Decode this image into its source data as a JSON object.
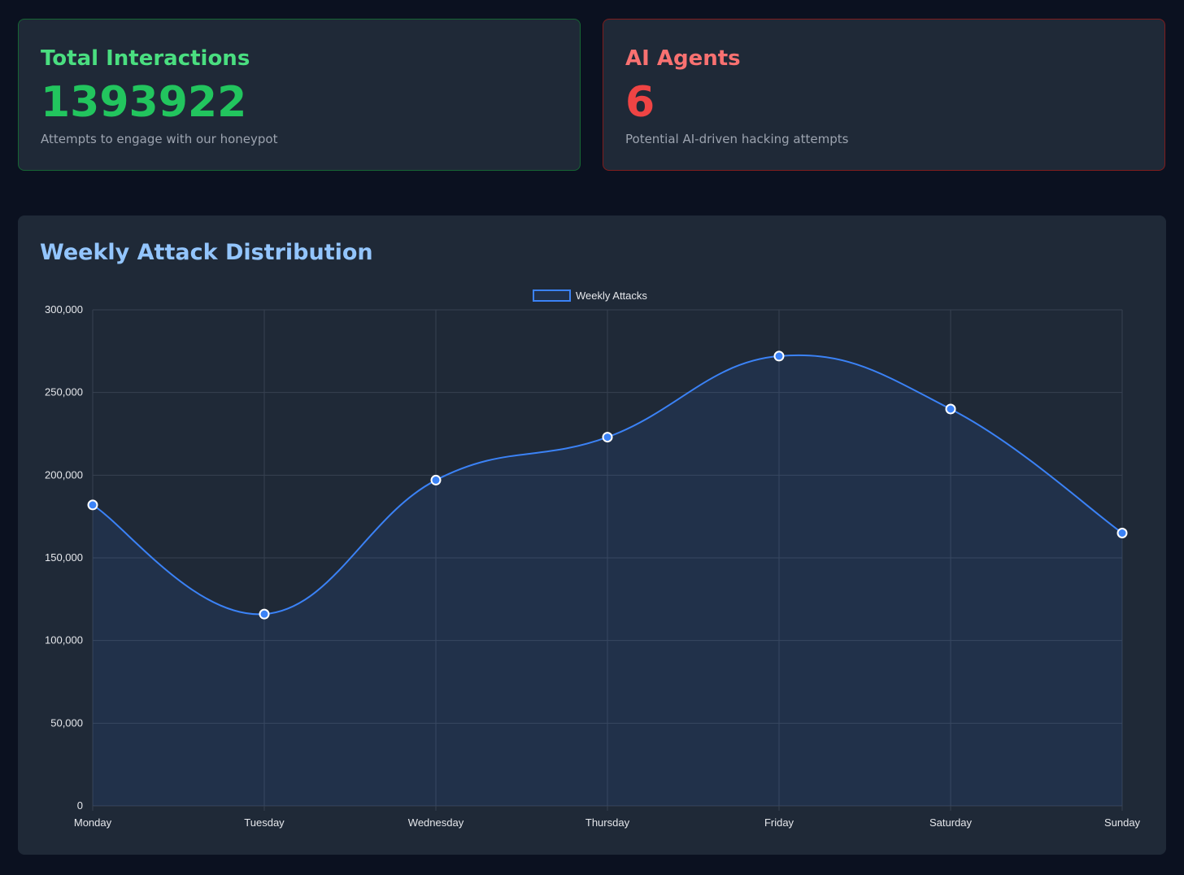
{
  "stats": {
    "interactions": {
      "title": "Total Interactions",
      "value": "1393922",
      "description": "Attempts to engage with our honeypot",
      "color": "#4ade80",
      "value_color": "#22c55e"
    },
    "agents": {
      "title": "AI Agents",
      "value": "6",
      "description": "Potential AI-driven hacking attempts",
      "color": "#f87171",
      "value_color": "#ef4444"
    }
  },
  "chart_data": {
    "type": "area",
    "title": "Weekly Attack Distribution",
    "categories": [
      "Monday",
      "Tuesday",
      "Wednesday",
      "Thursday",
      "Friday",
      "Saturday",
      "Sunday"
    ],
    "series": [
      {
        "name": "Weekly Attacks",
        "values": [
          182000,
          116000,
          197000,
          223000,
          272000,
          240000,
          165000
        ],
        "color": "#3b82f6"
      }
    ],
    "ylim": [
      0,
      300000
    ],
    "yticks": [
      0,
      50000,
      100000,
      150000,
      200000,
      250000,
      300000
    ],
    "ytick_labels": [
      "0",
      "50,000",
      "100,000",
      "150,000",
      "200,000",
      "250,000",
      "300,000"
    ],
    "xlabel": "",
    "ylabel": "",
    "grid": true,
    "legend": "top-center"
  }
}
